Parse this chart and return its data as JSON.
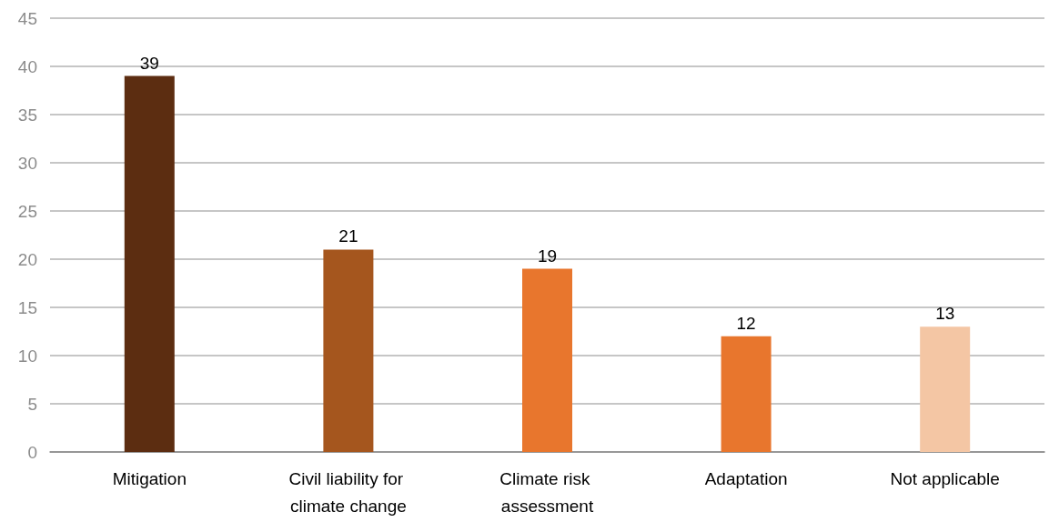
{
  "chart_data": {
    "type": "bar",
    "categories": [
      "Mitigation",
      "Civil liability for climate change",
      "Climate risk assessment",
      "Adaptation",
      "Not applicable"
    ],
    "values": [
      39,
      21,
      19,
      12,
      13
    ],
    "colors": [
      "#5c2d11",
      "#a5561e",
      "#e8762d",
      "#e8762d",
      "#f4c6a4"
    ],
    "ylim": [
      0,
      45
    ],
    "yticks": [
      0,
      5,
      10,
      15,
      20,
      25,
      30,
      35,
      40,
      45
    ],
    "grid": "y",
    "data_labels": true
  }
}
